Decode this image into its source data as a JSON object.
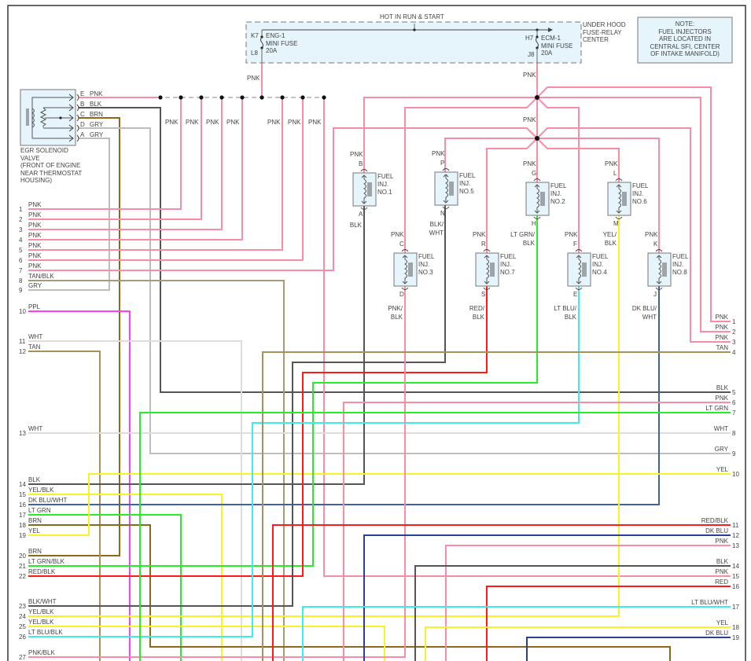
{
  "fuse_box": {
    "supply_label": "HOT IN RUN & START",
    "location_lines": [
      "UNDER HOOD",
      "FUSE-RELAY",
      "CENTER"
    ],
    "fuse1": {
      "in_pin": "K7",
      "out_pin": "L8",
      "lines": [
        "ENG-1",
        "MINI FUSE",
        "20A"
      ]
    },
    "fuse2": {
      "in_pin": "H7",
      "out_pin": "J8",
      "lines": [
        "ECM-1",
        "MINI FUSE",
        "20A"
      ]
    },
    "feed_labels": [
      "PNK",
      "PNK",
      "PNK"
    ]
  },
  "note": {
    "lines": [
      "NOTE:",
      "FUEL INJECTORS",
      "ARE LOCATED IN",
      "CENTRAL SFI, CENTER",
      "OF INTAKE MANIFOLD)"
    ]
  },
  "egr": {
    "title_lines": [
      "EGR SOLENOID",
      "VALVE",
      "(FRONT OF ENGINE",
      "NEAR THERMOSTAT",
      "HOUSING)"
    ],
    "pins": [
      {
        "pin": "E",
        "wire": "PNK"
      },
      {
        "pin": "B",
        "wire": "BLK"
      },
      {
        "pin": "C",
        "wire": "BRN"
      },
      {
        "pin": "D",
        "wire": "GRY"
      },
      {
        "pin": "A",
        "wire": "GRY"
      }
    ]
  },
  "bus_labels": [
    "PNK",
    "PNK",
    "PNK",
    "PNK",
    "PNK",
    "PNK",
    "PNK"
  ],
  "injectors": [
    {
      "lines": [
        "FUEL",
        "INJ.",
        "NO.1"
      ],
      "top_pin": "B",
      "bottom_pin": "A",
      "top_wire": [
        "PNK"
      ],
      "bottom_wire": [
        "BLK"
      ]
    },
    {
      "lines": [
        "FUEL",
        "INJ.",
        "NO.5"
      ],
      "top_pin": "P",
      "bottom_pin": "N",
      "top_wire": [
        "PNK"
      ],
      "bottom_wire": [
        "BLK/",
        "WHT"
      ]
    },
    {
      "lines": [
        "FUEL",
        "INJ.",
        "NO.2"
      ],
      "top_pin": "G",
      "bottom_pin": "H",
      "top_wire": [
        "PNK"
      ],
      "bottom_wire": [
        "LT GRN/",
        "BLK"
      ]
    },
    {
      "lines": [
        "FUEL",
        "INJ.",
        "NO.6"
      ],
      "top_pin": "L",
      "bottom_pin": "M",
      "top_wire": [
        "PNK"
      ],
      "bottom_wire": [
        "YEL/",
        "BLK"
      ]
    },
    {
      "lines": [
        "FUEL",
        "INJ.",
        "NO.3"
      ],
      "top_pin": "C",
      "bottom_pin": "D",
      "top_wire": [
        "PNK"
      ],
      "bottom_wire": [
        "PNK/",
        "BLK"
      ]
    },
    {
      "lines": [
        "FUEL",
        "INJ.",
        "NO.7"
      ],
      "top_pin": "R",
      "bottom_pin": "S",
      "top_wire": [
        "PNK"
      ],
      "bottom_wire": [
        "RED/",
        "BLK"
      ]
    },
    {
      "lines": [
        "FUEL",
        "INJ.",
        "NO.4"
      ],
      "top_pin": "F",
      "bottom_pin": "E",
      "top_wire": [
        "PNK"
      ],
      "bottom_wire": [
        "LT BLU/",
        "BLK"
      ]
    },
    {
      "lines": [
        "FUEL",
        "INJ.",
        "NO.8"
      ],
      "top_pin": "K",
      "bottom_pin": "J",
      "top_wire": [
        "PNK"
      ],
      "bottom_wire": [
        "DK BLU/",
        "WHT"
      ]
    }
  ],
  "left_rows": [
    {
      "num": "1",
      "label": "PNK"
    },
    {
      "num": "2",
      "label": "PNK"
    },
    {
      "num": "3",
      "label": "PNK"
    },
    {
      "num": "4",
      "label": "PNK"
    },
    {
      "num": "5",
      "label": "PNK"
    },
    {
      "num": "6",
      "label": "PNK"
    },
    {
      "num": "7",
      "label": "PNK"
    },
    {
      "num": "8",
      "label": "TAN/BLK"
    },
    {
      "num": "9",
      "label": "GRY"
    },
    {
      "num": "10",
      "label": "PPL"
    },
    {
      "num": "11",
      "label": "WHT"
    },
    {
      "num": "12",
      "label": "TAN"
    },
    {
      "num": "13",
      "label": "WHT"
    },
    {
      "num": "14",
      "label": "BLK"
    },
    {
      "num": "15",
      "label": "YEL/BLK"
    },
    {
      "num": "16",
      "label": "DK BLU/WHT"
    },
    {
      "num": "17",
      "label": "LT GRN"
    },
    {
      "num": "18",
      "label": "BRN"
    },
    {
      "num": "19",
      "label": "YEL"
    },
    {
      "num": "20",
      "label": "BRN"
    },
    {
      "num": "21",
      "label": "LT GRN/BLK"
    },
    {
      "num": "22",
      "label": "RED/BLK"
    },
    {
      "num": "23",
      "label": "BLK/WHT"
    },
    {
      "num": "24",
      "label": "YEL/BLK"
    },
    {
      "num": "25",
      "label": "YEL/BLK"
    },
    {
      "num": "26",
      "label": "LT BLU/BLK"
    },
    {
      "num": "27",
      "label": "PNK/BLK"
    }
  ],
  "right_rows": [
    {
      "num": "1",
      "label": "PNK"
    },
    {
      "num": "2",
      "label": "PNK"
    },
    {
      "num": "3",
      "label": "PNK"
    },
    {
      "num": "4",
      "label": "TAN"
    },
    {
      "num": "5",
      "label": "BLK"
    },
    {
      "num": "6",
      "label": "PNK"
    },
    {
      "num": "7",
      "label": "LT GRN"
    },
    {
      "num": "8",
      "label": "WHT"
    },
    {
      "num": "9",
      "label": "GRY"
    },
    {
      "num": "10",
      "label": "YEL"
    },
    {
      "num": "11",
      "label": "RED/BLK"
    },
    {
      "num": "12",
      "label": "DK BLU"
    },
    {
      "num": "13",
      "label": "PNK"
    },
    {
      "num": "14",
      "label": "BLK"
    },
    {
      "num": "15",
      "label": "PNK"
    },
    {
      "num": "16",
      "label": "RED"
    },
    {
      "num": "17",
      "label": "LT BLU/WHT"
    },
    {
      "num": "18",
      "label": "YEL"
    },
    {
      "num": "19",
      "label": "DK BLU"
    }
  ],
  "wire_colors": {
    "PNK": "#f98da6",
    "BLK": "#555555",
    "BRN": "#8a6a1a",
    "GRY": "#bdbdbd",
    "WHT": "#dddddd",
    "TAN": "#a8905a",
    "TANBLK": "#a89a78",
    "PPL": "#ff3cff",
    "YEL": "#f7f22a",
    "LTGRN": "#25ee25",
    "DKBLUWHT": "#4060a8",
    "DKBLU": "#2a3f9a",
    "RED": "#ff1a1a",
    "LTBLU": "#3aeeee"
  },
  "component_fill": "#e6f4fb"
}
